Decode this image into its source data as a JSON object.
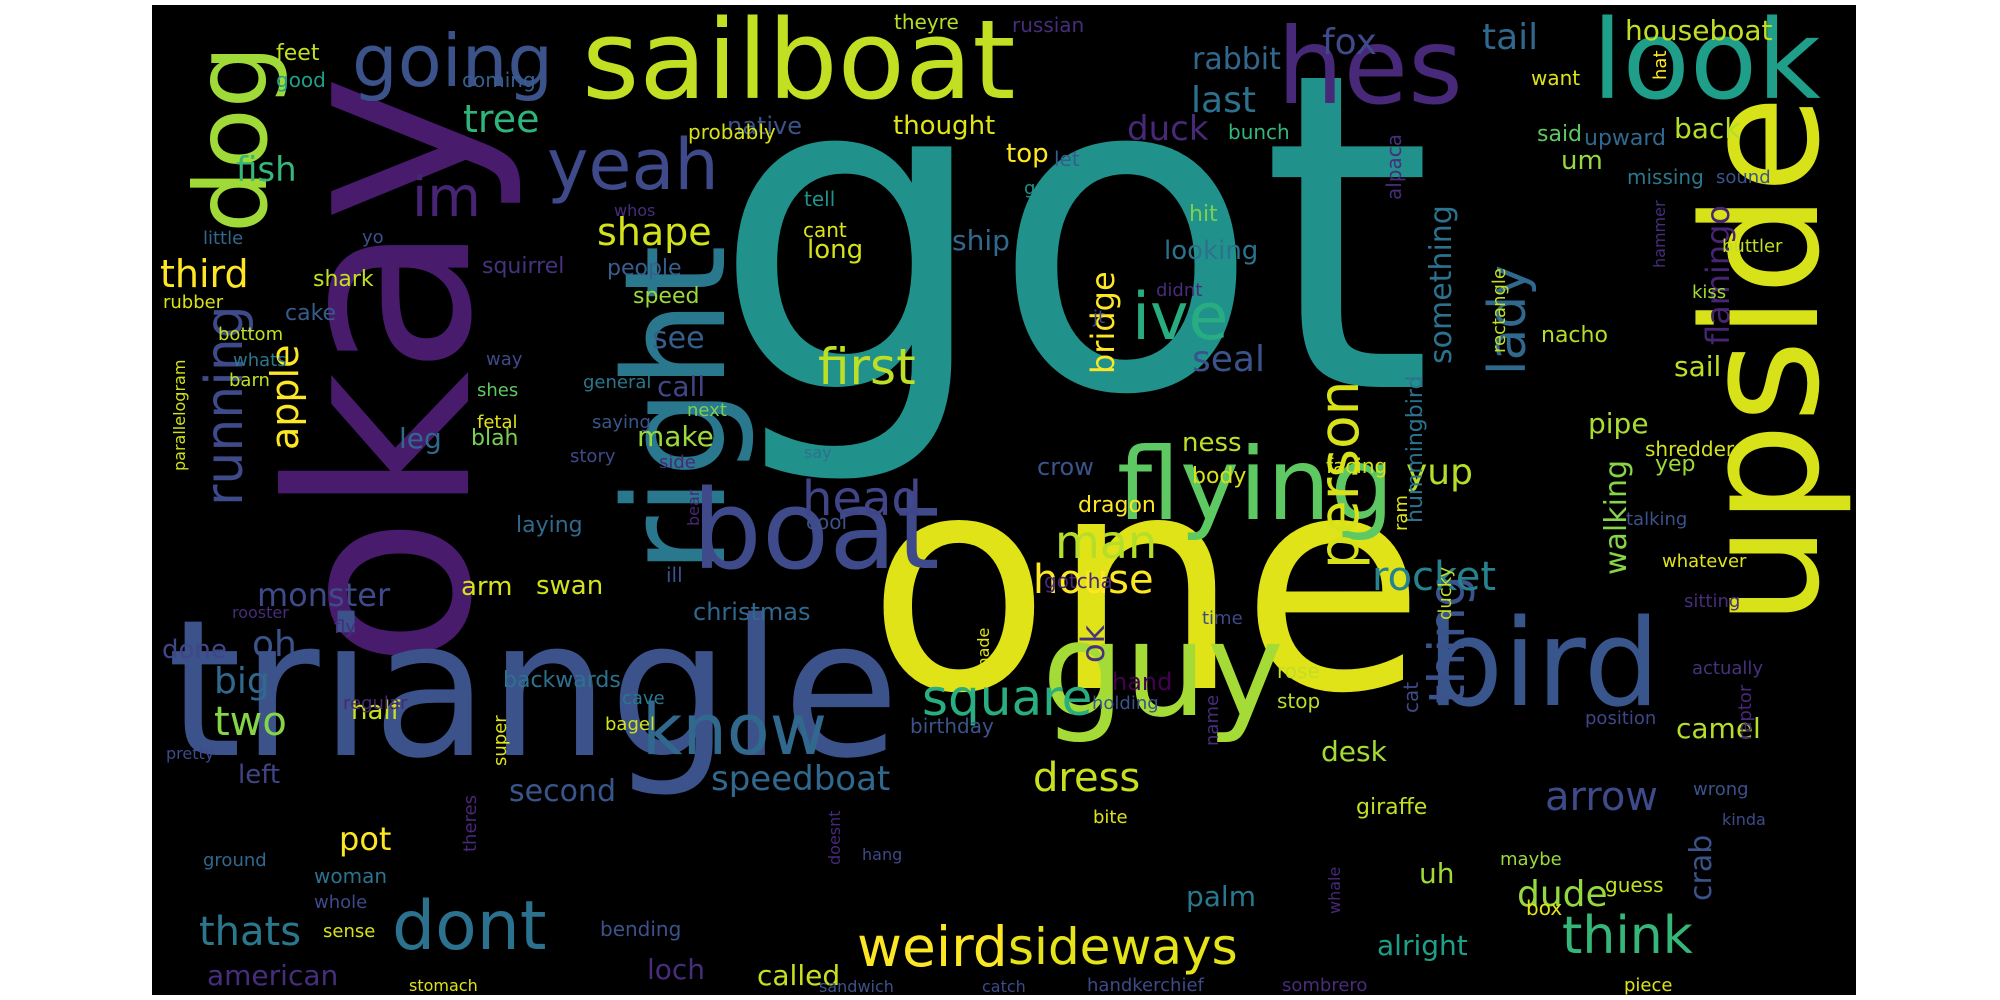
{
  "palette": [
    "#440154",
    "#46337e",
    "#365c8d",
    "#277f8e",
    "#1fa187",
    "#4ac16d",
    "#a0da39",
    "#fde725"
  ],
  "words": [
    {
      "text": "got",
      "color": "#21918c"
    },
    {
      "text": "one",
      "color": "#dfe318"
    },
    {
      "text": "okay",
      "color": "#481b6d"
    },
    {
      "text": "triangle",
      "color": "#3b528b"
    },
    {
      "text": "upside",
      "color": "#d8e219"
    },
    {
      "text": "right",
      "color": "#2a788e"
    },
    {
      "text": "sailboat",
      "color": "#c2df23"
    },
    {
      "text": "guy",
      "color": "#a5db36"
    },
    {
      "text": "bird",
      "color": "#39568c"
    },
    {
      "text": "boat",
      "color": "#3e4a89"
    },
    {
      "text": "look",
      "color": "#1f9e89"
    },
    {
      "text": "hes",
      "color": "#482878"
    },
    {
      "text": "flying",
      "color": "#5ec962"
    },
    {
      "text": "dog",
      "color": "#a0da39"
    },
    {
      "text": "going",
      "color": "#3b528b"
    },
    {
      "text": "yeah",
      "color": "#3e4a89"
    },
    {
      "text": "know",
      "color": "#31688e"
    },
    {
      "text": "dont",
      "color": "#2c728e"
    },
    {
      "text": "weird",
      "color": "#fde725"
    },
    {
      "text": "person",
      "color": "#d8e219"
    },
    {
      "text": "thing",
      "color": "#3b528b"
    },
    {
      "text": "sideways",
      "color": "#e5e419"
    },
    {
      "text": "ive",
      "color": "#27ad81"
    },
    {
      "text": "im",
      "color": "#482475"
    },
    {
      "text": "lady",
      "color": "#31688e"
    },
    {
      "text": "running",
      "color": "#3e4a89"
    },
    {
      "text": "think",
      "color": "#35b779"
    },
    {
      "text": "square",
      "color": "#28ae80"
    },
    {
      "text": "first",
      "color": "#bddf26"
    },
    {
      "text": "head",
      "color": "#414487"
    },
    {
      "text": "man",
      "color": "#b5de2b"
    },
    {
      "text": "rocket",
      "color": "#26828e"
    },
    {
      "text": "house",
      "color": "#fde725"
    },
    {
      "text": "dress",
      "color": "#c8e020"
    },
    {
      "text": "speedboat",
      "color": "#31688e"
    },
    {
      "text": "arrow",
      "color": "#3e4a89"
    },
    {
      "text": "dude",
      "color": "#95d840"
    },
    {
      "text": "thats",
      "color": "#2a788e"
    },
    {
      "text": "two",
      "color": "#86d549"
    },
    {
      "text": "third",
      "color": "#fde725"
    },
    {
      "text": "shape",
      "color": "#d2e21b"
    },
    {
      "text": "apple",
      "color": "#fde725"
    },
    {
      "text": "big",
      "color": "#31688e"
    },
    {
      "text": "oh",
      "color": "#3b528b"
    },
    {
      "text": "yup",
      "color": "#b5de2b"
    },
    {
      "text": "tail",
      "color": "#31688e"
    },
    {
      "text": "fox",
      "color": "#3e4a89"
    },
    {
      "text": "last",
      "color": "#2c728e"
    },
    {
      "text": "tree",
      "color": "#2fb47c"
    },
    {
      "text": "fish",
      "color": "#35b779"
    },
    {
      "text": "duck",
      "color": "#482878"
    },
    {
      "text": "rabbit",
      "color": "#31688e"
    },
    {
      "text": "houseboat",
      "color": "#c2df23"
    },
    {
      "text": "ok",
      "color": "#46327e"
    },
    {
      "text": "bridge",
      "color": "#fde725"
    },
    {
      "text": "seal",
      "color": "#3b528b"
    },
    {
      "text": "monster",
      "color": "#3e4a89"
    },
    {
      "text": "walking",
      "color": "#86d549"
    },
    {
      "text": "flamingo",
      "color": "#482475"
    },
    {
      "text": "something",
      "color": "#2c728e"
    },
    {
      "text": "pot",
      "color": "#fde725"
    },
    {
      "text": "crab",
      "color": "#3b528b"
    },
    {
      "text": "alright",
      "color": "#1f9e89"
    },
    {
      "text": "second",
      "color": "#39568c"
    },
    {
      "text": "american",
      "color": "#472d7b"
    },
    {
      "text": "loch",
      "color": "#472d7b"
    },
    {
      "text": "called",
      "color": "#c8e020"
    },
    {
      "text": "sail",
      "color": "#bddf26"
    },
    {
      "text": "pipe",
      "color": "#aadc32"
    },
    {
      "text": "palm",
      "color": "#2a788e"
    },
    {
      "text": "uh",
      "color": "#a0da39"
    },
    {
      "text": "see",
      "color": "#355f8d"
    },
    {
      "text": "call",
      "color": "#404688"
    },
    {
      "text": "make",
      "color": "#9bd93c"
    },
    {
      "text": "leg",
      "color": "#31688e"
    },
    {
      "text": "arm",
      "color": "#d8e219"
    },
    {
      "text": "swan",
      "color": "#d2e21b"
    },
    {
      "text": "half",
      "color": "#c8e020"
    },
    {
      "text": "left",
      "color": "#414487"
    },
    {
      "text": "done",
      "color": "#404688"
    },
    {
      "text": "ship",
      "color": "#31688e"
    },
    {
      "text": "desk",
      "color": "#a5db36"
    },
    {
      "text": "camel",
      "color": "#b5de2b"
    },
    {
      "text": "um",
      "color": "#95d840"
    },
    {
      "text": "back",
      "color": "#b5de2b"
    },
    {
      "text": "top",
      "color": "#fde725"
    },
    {
      "text": "long",
      "color": "#d2e21b"
    },
    {
      "text": "looking",
      "color": "#2c728e"
    },
    {
      "text": "native",
      "color": "#3b528b"
    },
    {
      "text": "thought",
      "color": "#dfe318"
    },
    {
      "text": "ness",
      "color": "#bddf26"
    },
    {
      "text": "crow",
      "color": "#3b528b"
    },
    {
      "text": "christmas",
      "color": "#31688e"
    },
    {
      "text": "shark",
      "color": "#c2df23"
    },
    {
      "text": "cake",
      "color": "#365c8d"
    },
    {
      "text": "squirrel",
      "color": "#46327e"
    },
    {
      "text": "speed",
      "color": "#9bd93c"
    },
    {
      "text": "people",
      "color": "#355f8d"
    },
    {
      "text": "upward",
      "color": "#31688e"
    },
    {
      "text": "said",
      "color": "#5ec962"
    },
    {
      "text": "missing",
      "color": "#2a788e"
    },
    {
      "text": "hit",
      "color": "#7ad151"
    },
    {
      "text": "hummingbird",
      "color": "#2c728e"
    },
    {
      "text": "yep",
      "color": "#9bd93c"
    },
    {
      "text": "shredder",
      "color": "#d2e21b"
    },
    {
      "text": "body",
      "color": "#d8e219"
    },
    {
      "text": "dragon",
      "color": "#fde725"
    },
    {
      "text": "laying",
      "color": "#31688e"
    },
    {
      "text": "blah",
      "color": "#7ad151"
    },
    {
      "text": "feet",
      "color": "#c2df23"
    },
    {
      "text": "good",
      "color": "#1f9e89"
    },
    {
      "text": "coming",
      "color": "#355f8d"
    },
    {
      "text": "theyre",
      "color": "#b5de2b"
    },
    {
      "text": "russian",
      "color": "#472d7b"
    },
    {
      "text": "probably",
      "color": "#d8e219"
    },
    {
      "text": "want",
      "color": "#dfe318"
    },
    {
      "text": "alpaca",
      "color": "#472d7b"
    },
    {
      "text": "bunch",
      "color": "#35b779"
    },
    {
      "text": "let",
      "color": "#365c8d"
    },
    {
      "text": "tell",
      "color": "#21918c"
    },
    {
      "text": "cant",
      "color": "#dfe318"
    },
    {
      "text": "whos",
      "color": "#472d7b"
    },
    {
      "text": "little",
      "color": "#31688e"
    },
    {
      "text": "yo",
      "color": "#3b528b"
    },
    {
      "text": "great",
      "color": "#21918c"
    },
    {
      "text": "didnt",
      "color": "#472d7b"
    },
    {
      "text": "sound",
      "color": "#39568c"
    },
    {
      "text": "hammer",
      "color": "#472d7b"
    },
    {
      "text": "buttler",
      "color": "#c2df23"
    },
    {
      "text": "hat",
      "color": "#fde725"
    },
    {
      "text": "kiss",
      "color": "#a0da39"
    },
    {
      "text": "rectangle",
      "color": "#c2df23"
    },
    {
      "text": "nacho",
      "color": "#b5de2b"
    },
    {
      "text": "rubber",
      "color": "#d8e219"
    },
    {
      "text": "bottom",
      "color": "#c2df23"
    },
    {
      "text": "whats",
      "color": "#2a788e"
    },
    {
      "text": "barn",
      "color": "#c2df23"
    },
    {
      "text": "parallelogram",
      "color": "#d2e21b"
    },
    {
      "text": "general",
      "color": "#2a788e"
    },
    {
      "text": "jt",
      "color": "#3e4a89"
    },
    {
      "text": "way",
      "color": "#3e4a89"
    },
    {
      "text": "shes",
      "color": "#5ec962"
    },
    {
      "text": "next",
      "color": "#7ad151"
    },
    {
      "text": "fetal",
      "color": "#dfe318"
    },
    {
      "text": "saying",
      "color": "#39568c"
    },
    {
      "text": "story",
      "color": "#3e4a89"
    },
    {
      "text": "say",
      "color": "#2c728e"
    },
    {
      "text": "side",
      "color": "#482878"
    },
    {
      "text": "facing",
      "color": "#d8e219"
    },
    {
      "text": "ram",
      "color": "#dfe318"
    },
    {
      "text": "talking",
      "color": "#3b528b"
    },
    {
      "text": "whatever",
      "color": "#dfe318"
    },
    {
      "text": "cool",
      "color": "#3b528b"
    },
    {
      "text": "bear",
      "color": "#482878"
    },
    {
      "text": "ill",
      "color": "#3b528b"
    },
    {
      "text": "gotcha",
      "color": "#482878"
    },
    {
      "text": "sitting",
      "color": "#472d7b"
    },
    {
      "text": "rooster",
      "color": "#472d7b"
    },
    {
      "text": "ducky",
      "color": "#c2df23"
    },
    {
      "text": "time",
      "color": "#3e4a89"
    },
    {
      "text": "made",
      "color": "#dfe318"
    },
    {
      "text": "fly",
      "color": "#472d7b"
    },
    {
      "text": "hand",
      "color": "#440154"
    },
    {
      "text": "backwards",
      "color": "#2c728e"
    },
    {
      "text": "regular",
      "color": "#482878"
    },
    {
      "text": "rose",
      "color": "#c2df23"
    },
    {
      "text": "actually",
      "color": "#46327e"
    },
    {
      "text": "cave",
      "color": "#2a788e"
    },
    {
      "text": "holding",
      "color": "#3b528b"
    },
    {
      "text": "stop",
      "color": "#b5de2b"
    },
    {
      "text": "cat",
      "color": "#3e4a89"
    },
    {
      "text": "name",
      "color": "#472d7b"
    },
    {
      "text": "raptor",
      "color": "#482878"
    },
    {
      "text": "super",
      "color": "#dfe318"
    },
    {
      "text": "bagel",
      "color": "#d2e21b"
    },
    {
      "text": "birthday",
      "color": "#3b528b"
    },
    {
      "text": "position",
      "color": "#404688"
    },
    {
      "text": "pretty",
      "color": "#3e4a89"
    },
    {
      "text": "theres",
      "color": "#482878"
    },
    {
      "text": "doesnt",
      "color": "#482878"
    },
    {
      "text": "giraffe",
      "color": "#c2df23"
    },
    {
      "text": "bite",
      "color": "#dfe318"
    },
    {
      "text": "wrong",
      "color": "#3b528b"
    },
    {
      "text": "kinda",
      "color": "#3e4a89"
    },
    {
      "text": "ground",
      "color": "#31688e"
    },
    {
      "text": "woman",
      "color": "#2c728e"
    },
    {
      "text": "whole",
      "color": "#3e4a89"
    },
    {
      "text": "hang",
      "color": "#3e4a89"
    },
    {
      "text": "maybe",
      "color": "#9bd93c"
    },
    {
      "text": "whale",
      "color": "#482878"
    },
    {
      "text": "guess",
      "color": "#c2df23"
    },
    {
      "text": "box",
      "color": "#dfe318"
    },
    {
      "text": "sense",
      "color": "#d8e219"
    },
    {
      "text": "bending",
      "color": "#3b528b"
    },
    {
      "text": "stomach",
      "color": "#dfe318"
    },
    {
      "text": "sandwich",
      "color": "#3b528b"
    },
    {
      "text": "catch",
      "color": "#3e4a89"
    },
    {
      "text": "handkerchief",
      "color": "#3e4a89"
    },
    {
      "text": "sombrero",
      "color": "#472d7b"
    },
    {
      "text": "piece",
      "color": "#dfe318"
    }
  ]
}
